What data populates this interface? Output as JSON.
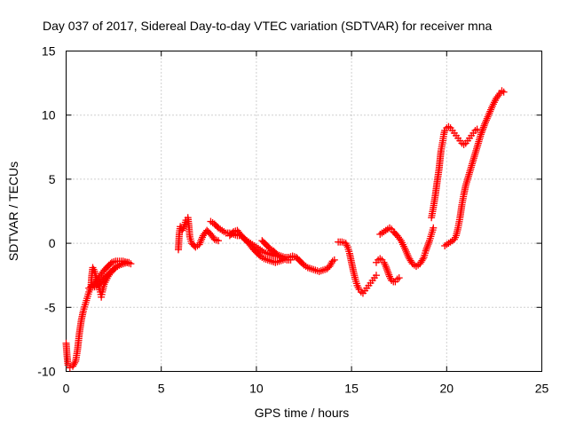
{
  "chart_data": {
    "type": "scatter",
    "title": "Day 037 of 2017, Sidereal Day-to-day VTEC variation (SDTVAR) for receiver mna",
    "xlabel": "GPS time / hours",
    "ylabel": "SDTVAR / TECUs",
    "xlim": [
      0,
      25
    ],
    "ylim": [
      -10,
      15
    ],
    "xticks": [
      "0",
      "5",
      "10",
      "15",
      "20",
      "25"
    ],
    "yticks": [
      "-10",
      "-5",
      "0",
      "5",
      "10",
      "15"
    ],
    "grid": true,
    "marker": "plus",
    "color": "#ff0000",
    "series": [
      {
        "segments": [
          [
            [
              0.0,
              -7.8
            ],
            [
              0.05,
              -8.8
            ],
            [
              0.1,
              -9.5
            ],
            [
              0.2,
              -9.7
            ],
            [
              0.35,
              -9.6
            ],
            [
              0.5,
              -9.2
            ],
            [
              0.6,
              -8.3
            ],
            [
              0.7,
              -7.0
            ],
            [
              0.8,
              -6.0
            ],
            [
              0.9,
              -5.3
            ],
            [
              1.0,
              -4.8
            ],
            [
              1.1,
              -4.3
            ],
            [
              1.2,
              -3.8
            ],
            [
              1.3,
              -3.5
            ],
            [
              1.35,
              -2.5
            ],
            [
              1.4,
              -1.9
            ],
            [
              1.5,
              -2.2
            ],
            [
              1.6,
              -2.8
            ],
            [
              1.7,
              -3.3
            ],
            [
              1.8,
              -3.8
            ],
            [
              1.85,
              -4.2
            ],
            [
              1.9,
              -3.8
            ],
            [
              2.0,
              -3.2
            ],
            [
              2.2,
              -2.6
            ],
            [
              2.4,
              -2.2
            ],
            [
              2.6,
              -1.9
            ],
            [
              2.8,
              -1.7
            ],
            [
              3.0,
              -1.6
            ],
            [
              3.2,
              -1.5
            ],
            [
              3.4,
              -1.6
            ]
          ],
          [
            [
              1.2,
              -3.5
            ],
            [
              1.4,
              -3.3
            ],
            [
              1.6,
              -2.9
            ],
            [
              1.8,
              -2.5
            ],
            [
              2.0,
              -2.1
            ],
            [
              2.2,
              -1.8
            ],
            [
              2.4,
              -1.5
            ],
            [
              2.6,
              -1.4
            ],
            [
              2.8,
              -1.4
            ],
            [
              3.0,
              -1.4
            ],
            [
              3.2,
              -1.5
            ]
          ],
          [
            [
              1.5,
              -3.4
            ],
            [
              1.7,
              -3.2
            ],
            [
              1.9,
              -2.9
            ],
            [
              2.1,
              -2.6
            ],
            [
              2.3,
              -2.3
            ],
            [
              2.5,
              -2.0
            ],
            [
              2.7,
              -1.8
            ],
            [
              2.9,
              -1.6
            ],
            [
              3.1,
              -1.5
            ],
            [
              3.3,
              -1.5
            ]
          ],
          [
            [
              5.9,
              -0.5
            ],
            [
              5.95,
              0.8
            ],
            [
              6.0,
              1.3
            ],
            [
              6.1,
              1.0
            ],
            [
              6.2,
              1.3
            ],
            [
              6.3,
              1.8
            ],
            [
              6.4,
              2.0
            ],
            [
              6.45,
              1.4
            ],
            [
              6.5,
              0.5
            ],
            [
              6.6,
              0.0
            ],
            [
              6.8,
              -0.3
            ],
            [
              7.0,
              -0.1
            ],
            [
              7.2,
              0.6
            ],
            [
              7.4,
              1.0
            ],
            [
              7.6,
              0.7
            ],
            [
              7.8,
              0.3
            ],
            [
              8.0,
              0.2
            ]
          ],
          [
            [
              7.6,
              1.7
            ],
            [
              7.8,
              1.5
            ],
            [
              8.0,
              1.2
            ],
            [
              8.2,
              1.0
            ],
            [
              8.4,
              0.8
            ],
            [
              8.6,
              0.8
            ],
            [
              8.8,
              0.7
            ],
            [
              9.0,
              0.6
            ],
            [
              9.2,
              0.6
            ],
            [
              9.4,
              0.3
            ],
            [
              9.6,
              0.0
            ],
            [
              9.8,
              -0.4
            ],
            [
              10.0,
              -0.7
            ],
            [
              10.2,
              -1.0
            ],
            [
              10.4,
              -1.2
            ],
            [
              10.6,
              -1.3
            ],
            [
              10.8,
              -1.4
            ],
            [
              11.0,
              -1.5
            ],
            [
              11.2,
              -1.4
            ],
            [
              11.4,
              -1.3
            ]
          ],
          [
            [
              8.6,
              0.6
            ],
            [
              8.8,
              0.9
            ],
            [
              9.0,
              1.0
            ],
            [
              9.2,
              0.6
            ],
            [
              9.4,
              0.3
            ],
            [
              9.6,
              0.1
            ],
            [
              9.8,
              -0.1
            ],
            [
              10.0,
              -0.3
            ],
            [
              10.2,
              -0.5
            ],
            [
              10.4,
              -0.7
            ],
            [
              10.6,
              -0.8
            ],
            [
              10.8,
              -0.9
            ],
            [
              11.0,
              -1.0
            ],
            [
              11.2,
              -1.0
            ]
          ],
          [
            [
              10.3,
              0.2
            ],
            [
              10.5,
              -0.1
            ],
            [
              10.7,
              -0.4
            ],
            [
              10.9,
              -0.6
            ],
            [
              11.1,
              -0.9
            ],
            [
              11.3,
              -1.0
            ],
            [
              11.5,
              -1.1
            ],
            [
              11.7,
              -1.1
            ],
            [
              11.9,
              -1.0
            ],
            [
              12.1,
              -1.1
            ],
            [
              12.3,
              -1.4
            ],
            [
              12.5,
              -1.7
            ],
            [
              12.7,
              -1.9
            ],
            [
              12.9,
              -2.0
            ],
            [
              13.1,
              -2.1
            ],
            [
              13.3,
              -2.2
            ],
            [
              13.5,
              -2.1
            ],
            [
              13.7,
              -2.0
            ],
            [
              13.85,
              -1.8
            ],
            [
              14.0,
              -1.4
            ],
            [
              14.1,
              -1.3
            ]
          ],
          [
            [
              10.8,
              -0.6
            ],
            [
              11.0,
              -0.8
            ],
            [
              11.2,
              -1.0
            ],
            [
              11.4,
              -1.2
            ],
            [
              11.6,
              -1.3
            ],
            [
              11.8,
              -1.3
            ]
          ],
          [
            [
              14.3,
              0.1
            ],
            [
              14.5,
              0.1
            ],
            [
              14.7,
              0.0
            ],
            [
              14.8,
              -0.3
            ],
            [
              14.9,
              -0.8
            ],
            [
              15.0,
              -1.5
            ],
            [
              15.1,
              -2.2
            ],
            [
              15.2,
              -2.8
            ],
            [
              15.3,
              -3.3
            ],
            [
              15.4,
              -3.6
            ],
            [
              15.5,
              -3.8
            ],
            [
              15.6,
              -3.9
            ],
            [
              15.7,
              -3.7
            ],
            [
              15.8,
              -3.5
            ],
            [
              15.9,
              -3.3
            ],
            [
              16.0,
              -3.1
            ],
            [
              16.1,
              -2.9
            ],
            [
              16.2,
              -2.7
            ],
            [
              16.3,
              -2.5
            ]
          ],
          [
            [
              16.3,
              -1.5
            ],
            [
              16.4,
              -1.3
            ],
            [
              16.5,
              -1.2
            ],
            [
              16.6,
              -1.3
            ],
            [
              16.7,
              -1.5
            ],
            [
              16.8,
              -1.8
            ],
            [
              16.9,
              -2.2
            ],
            [
              17.0,
              -2.6
            ],
            [
              17.1,
              -2.9
            ],
            [
              17.2,
              -3.0
            ],
            [
              17.3,
              -3.0
            ],
            [
              17.4,
              -2.8
            ],
            [
              17.5,
              -2.7
            ]
          ],
          [
            [
              16.5,
              0.7
            ],
            [
              16.6,
              0.8
            ],
            [
              16.7,
              0.9
            ],
            [
              16.8,
              1.0
            ],
            [
              16.9,
              1.1
            ],
            [
              17.0,
              1.2
            ],
            [
              17.1,
              1.1
            ],
            [
              17.2,
              0.9
            ],
            [
              17.4,
              0.6
            ],
            [
              17.6,
              0.2
            ],
            [
              17.8,
              -0.4
            ],
            [
              18.0,
              -1.1
            ],
            [
              18.2,
              -1.6
            ],
            [
              18.4,
              -1.8
            ],
            [
              18.6,
              -1.6
            ],
            [
              18.8,
              -1.1
            ],
            [
              18.9,
              -0.6
            ],
            [
              19.0,
              -0.2
            ],
            [
              19.1,
              0.2
            ],
            [
              19.2,
              0.7
            ],
            [
              19.3,
              1.2
            ]
          ],
          [
            [
              19.2,
              2.0
            ],
            [
              19.3,
              2.8
            ],
            [
              19.4,
              3.7
            ],
            [
              19.5,
              4.8
            ],
            [
              19.6,
              5.8
            ],
            [
              19.65,
              6.5
            ],
            [
              19.7,
              7.2
            ],
            [
              19.8,
              8.0
            ],
            [
              19.85,
              8.5
            ],
            [
              19.9,
              8.8
            ],
            [
              20.0,
              9.0
            ],
            [
              20.1,
              9.1
            ],
            [
              20.2,
              9.0
            ],
            [
              20.3,
              8.8
            ],
            [
              20.4,
              8.6
            ],
            [
              20.5,
              8.4
            ],
            [
              20.6,
              8.2
            ],
            [
              20.7,
              8.0
            ],
            [
              20.8,
              7.8
            ],
            [
              20.9,
              7.7
            ],
            [
              21.0,
              7.8
            ],
            [
              21.1,
              8.0
            ],
            [
              21.2,
              8.2
            ],
            [
              21.3,
              8.4
            ],
            [
              21.4,
              8.6
            ],
            [
              21.5,
              8.8
            ],
            [
              21.6,
              8.9
            ]
          ],
          [
            [
              19.9,
              -0.2
            ],
            [
              20.0,
              -0.1
            ],
            [
              20.2,
              0.1
            ],
            [
              20.4,
              0.3
            ],
            [
              20.5,
              0.6
            ],
            [
              20.6,
              1.2
            ],
            [
              20.7,
              2.0
            ],
            [
              20.8,
              3.0
            ],
            [
              20.9,
              3.8
            ],
            [
              21.0,
              4.5
            ],
            [
              21.2,
              5.5
            ],
            [
              21.4,
              6.5
            ],
            [
              21.6,
              7.5
            ],
            [
              21.8,
              8.5
            ],
            [
              22.0,
              9.3
            ],
            [
              22.2,
              10.0
            ],
            [
              22.4,
              10.7
            ],
            [
              22.6,
              11.3
            ],
            [
              22.8,
              11.7
            ],
            [
              22.9,
              11.9
            ],
            [
              23.0,
              11.8
            ]
          ]
        ]
      }
    ]
  }
}
